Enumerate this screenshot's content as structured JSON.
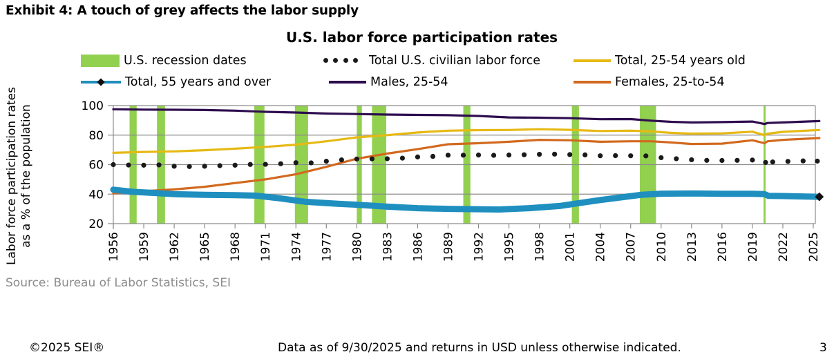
{
  "exhibit_title": "Exhibit 4: A touch of grey affects the labor supply",
  "source": "Source: Bureau of Labor Statistics, SEI",
  "footer": {
    "copyright": "©2025 SEI®",
    "disclaimer": "Data as of 9/30/2025 and returns in USD unless otherwise indicated.",
    "page_number": "3"
  },
  "legend": {
    "recession": "U.S. recession dates",
    "total_civilian": "Total U.S. civilian labor force",
    "total_25_54": "Total, 25-54 years old",
    "total_55_over": "Total, 55 years and over",
    "males_25_54": "Males, 25-54",
    "females_25_54": "Females, 25-to-54"
  },
  "chart_data": {
    "type": "line",
    "title": "U.S. labor force participation rates",
    "xlabel": "",
    "ylabel": "Labor force participation rates as a % of the population",
    "ylabel_lines": [
      "Labor force participation rates",
      "as a % of the population"
    ],
    "xlim": [
      1956,
      2025.7
    ],
    "ylim": [
      20,
      100
    ],
    "yticks": [
      20,
      40,
      60,
      80,
      100
    ],
    "xticks": [
      "1956",
      "1959",
      "1962",
      "1965",
      "1968",
      "1971",
      "1974",
      "1977",
      "1980",
      "1983",
      "1986",
      "1989",
      "1992",
      "1995",
      "1998",
      "2001",
      "2004",
      "2007",
      "2010",
      "2013",
      "2016",
      "2019",
      "2022",
      "2025"
    ],
    "grid": "horizontal",
    "legend_position": "top",
    "colors": {
      "recession": "#92d050",
      "total_civilian": "#1a1a1a",
      "total_25_54": "#e6b914",
      "total_55_over": "#1f8fbf",
      "males_25_54": "#2e0d4f",
      "females_25_54": "#d2691e",
      "grid": "#8c8c8c"
    },
    "recessions": [
      [
        1957.6,
        1958.3
      ],
      [
        1960.3,
        1961.1
      ],
      [
        1969.9,
        1970.9
      ],
      [
        1973.9,
        1975.2
      ],
      [
        1980.0,
        1980.5
      ],
      [
        1981.5,
        1982.9
      ],
      [
        1990.5,
        1991.2
      ],
      [
        2001.2,
        2001.9
      ],
      [
        2007.9,
        2009.5
      ],
      [
        2020.1,
        2020.3
      ]
    ],
    "series": [
      {
        "key": "males_25_54",
        "name": "Males, 25-54",
        "style": "line",
        "x": [
          1956,
          1959,
          1962,
          1965,
          1968,
          1971,
          1974,
          1977,
          1980,
          1983,
          1986,
          1989,
          1992,
          1995,
          1998,
          2001,
          2004,
          2007,
          2009,
          2011,
          2013,
          2016,
          2019,
          2020.2,
          2020.5,
          2022,
          2025.6
        ],
        "values": [
          97.5,
          97.3,
          97.2,
          97.0,
          96.6,
          95.8,
          95.3,
          94.6,
          94.3,
          93.9,
          93.7,
          93.5,
          93.0,
          92.0,
          91.8,
          91.5,
          90.8,
          90.9,
          89.8,
          89.0,
          88.6,
          88.8,
          89.2,
          87.5,
          88.2,
          88.6,
          89.5
        ]
      },
      {
        "key": "total_25_54",
        "name": "Total, 25-54 years old",
        "style": "line",
        "x": [
          1956,
          1959,
          1962,
          1965,
          1968,
          1971,
          1974,
          1977,
          1980,
          1983,
          1986,
          1989,
          1992,
          1995,
          1998,
          2001,
          2004,
          2007,
          2009,
          2011,
          2013,
          2016,
          2019,
          2020.2,
          2020.5,
          2022,
          2025.6
        ],
        "values": [
          68.0,
          68.6,
          69.0,
          69.8,
          70.8,
          72.0,
          73.5,
          75.8,
          78.5,
          80.0,
          81.8,
          83.0,
          83.4,
          83.5,
          84.0,
          83.6,
          82.8,
          83.0,
          82.5,
          81.5,
          81.0,
          81.2,
          82.3,
          80.0,
          81.0,
          82.2,
          83.5
        ]
      },
      {
        "key": "females_25_54",
        "name": "Females, 25-to-54",
        "style": "line",
        "x": [
          1956,
          1959,
          1962,
          1965,
          1968,
          1971,
          1974,
          1977,
          1980,
          1983,
          1986,
          1989,
          1992,
          1995,
          1998,
          2001,
          2004,
          2007,
          2009,
          2011,
          2013,
          2016,
          2019,
          2020.2,
          2020.5,
          2022,
          2025.6
        ],
        "values": [
          40.5,
          42.0,
          43.2,
          45.0,
          47.5,
          50.0,
          53.5,
          58.5,
          64.0,
          67.5,
          70.5,
          73.8,
          74.5,
          75.5,
          76.8,
          76.5,
          75.5,
          75.8,
          75.8,
          75.0,
          74.0,
          74.2,
          76.5,
          74.5,
          75.8,
          76.8,
          78.0
        ]
      },
      {
        "key": "total_civilian",
        "name": "Total U.S. civilian labor force",
        "style": "dots",
        "x": [
          1956,
          1957.5,
          1959,
          1960.5,
          1962,
          1963.5,
          1965,
          1966.5,
          1968,
          1969.5,
          1971,
          1972.5,
          1974,
          1975.5,
          1977,
          1978.5,
          1980,
          1981.5,
          1983,
          1984.5,
          1986,
          1987.5,
          1989,
          1990.5,
          1992,
          1993.5,
          1995,
          1996.5,
          1998,
          1999.5,
          2001,
          2002.5,
          2004,
          2005.5,
          2007,
          2008.5,
          2010,
          2011.5,
          2013,
          2014.5,
          2016,
          2017.5,
          2019,
          2020.3,
          2021,
          2022.5,
          2024,
          2025.4
        ],
        "values": [
          60.0,
          59.7,
          59.6,
          59.8,
          58.9,
          58.7,
          58.9,
          59.3,
          59.6,
          60.1,
          60.2,
          60.6,
          61.3,
          61.2,
          62.3,
          63.2,
          63.8,
          63.9,
          64.0,
          64.4,
          65.2,
          65.6,
          66.4,
          66.4,
          66.5,
          66.3,
          66.5,
          66.7,
          67.0,
          67.1,
          66.8,
          66.6,
          66.0,
          66.1,
          66.0,
          65.9,
          64.7,
          64.0,
          63.3,
          62.9,
          62.8,
          62.9,
          63.1,
          61.5,
          61.8,
          62.2,
          62.5,
          62.4
        ]
      },
      {
        "key": "total_55_over",
        "name": "Total, 55 years and over",
        "style": "thick-line-diamond-end",
        "x": [
          1956,
          1958,
          1960,
          1962,
          1965,
          1968,
          1970,
          1972,
          1975,
          1978,
          1980,
          1983,
          1986,
          1989,
          1992,
          1994,
          1997,
          2000,
          2002,
          2004,
          2006,
          2008,
          2010,
          2013,
          2016,
          2019,
          2020.2,
          2020.6,
          2022,
          2025.6
        ],
        "values": [
          43.0,
          41.5,
          40.8,
          40.0,
          39.5,
          39.3,
          39.0,
          37.5,
          34.8,
          33.5,
          32.8,
          31.5,
          30.5,
          30.0,
          29.8,
          29.6,
          30.5,
          32.0,
          34.0,
          36.0,
          37.8,
          39.5,
          40.3,
          40.5,
          40.2,
          40.2,
          40.0,
          38.8,
          38.7,
          38.2
        ]
      }
    ]
  }
}
